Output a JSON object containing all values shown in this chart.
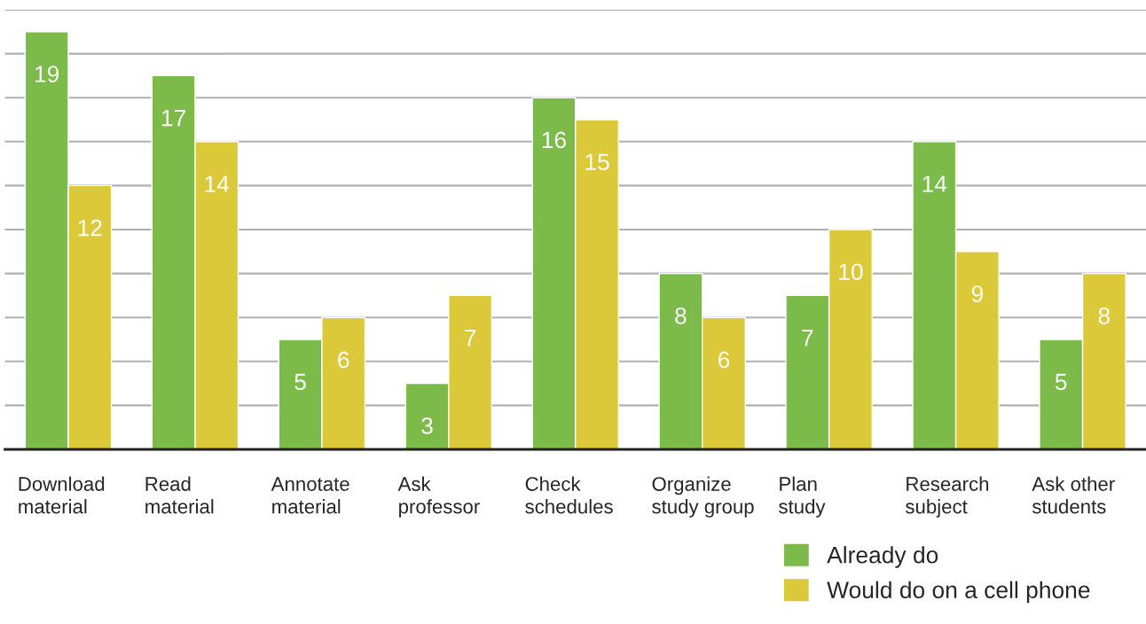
{
  "chart_data": {
    "type": "bar",
    "categories": [
      "Download\nmaterial",
      "Read\nmaterial",
      "Annotate\nmaterial",
      "Ask\nprofessor",
      "Check\nschedules",
      "Organize\nstudy group",
      "Plan\nstudy",
      "Research\nsubject",
      "Ask other\nstudents"
    ],
    "series": [
      {
        "name": "Already do",
        "color": "#7cbb4a",
        "values": [
          19,
          17,
          5,
          3,
          16,
          8,
          7,
          14,
          5
        ]
      },
      {
        "name": "Would do on a cell phone",
        "color": "#dcc93a",
        "values": [
          12,
          14,
          6,
          7,
          15,
          6,
          10,
          9,
          8
        ]
      }
    ],
    "ylim": [
      0,
      20
    ],
    "yticks": [
      {
        "value": 0,
        "label": null
      },
      {
        "value": 2,
        "label": null
      },
      {
        "value": 4,
        "label": null
      },
      {
        "value": 6,
        "label": null
      },
      {
        "value": 8,
        "label": null
      },
      {
        "value": 10,
        "label": null
      },
      {
        "value": 12,
        "label": null
      },
      {
        "value": 14,
        "label": null
      },
      {
        "value": 16,
        "label": null
      },
      {
        "value": 18,
        "label": null
      },
      {
        "value": 20,
        "label": null
      }
    ],
    "tick_labels": "x",
    "grid": "y",
    "data_labels": true,
    "legend": "bottom right"
  }
}
